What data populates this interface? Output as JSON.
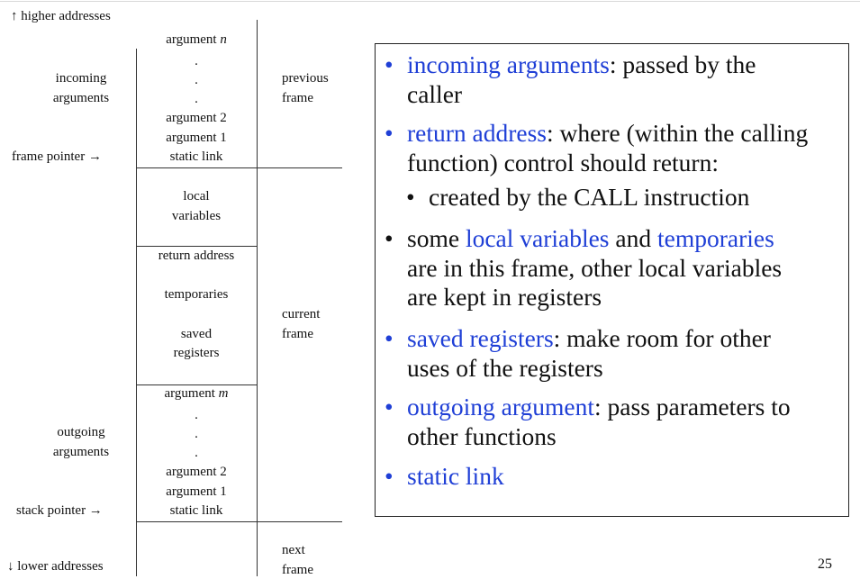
{
  "labels": {
    "higher_addresses": "↑ higher addresses",
    "incoming_args": [
      "incoming",
      "arguments"
    ],
    "frame_pointer": "frame pointer →",
    "outgoing_args": [
      "outgoing",
      "arguments"
    ],
    "stack_pointer": "stack pointer →",
    "lower_addresses": "↓ lower addresses"
  },
  "frames": {
    "previous": [
      "previous",
      "frame"
    ],
    "current": [
      "current",
      "frame"
    ],
    "next": [
      "next",
      "frame"
    ]
  },
  "stack": {
    "incoming": {
      "argument_n_base": "argument ",
      "argument_n_var": "n",
      "dot": ".",
      "argument_2": "argument 2",
      "argument_1": "argument 1",
      "static_link": "static link"
    },
    "local_variables": [
      "local",
      "variables"
    ],
    "return_address": "return address",
    "temporaries": "temporaries",
    "saved_registers": [
      "saved",
      "registers"
    ],
    "outgoing": {
      "argument_m_base": "argument ",
      "argument_m_var": "m",
      "dot": ".",
      "argument_2": "argument 2",
      "argument_1": "argument 1",
      "static_link": "static link"
    }
  },
  "bullets": [
    {
      "term": "incoming arguments",
      "rest": ": passed by the",
      "line2": "caller"
    },
    {
      "term": "return address",
      "rest": ": where (within the calling",
      "line2": "function) control should return:"
    },
    {
      "sub": "created by the CALL instruction"
    },
    {
      "pre": "some ",
      "term1": "local variables",
      "mid": " and ",
      "term2": "temporaries",
      "line2": "are in this frame, other local variables",
      "line3": "are kept in registers"
    },
    {
      "term": "saved registers",
      "rest": ": make room for other",
      "line2": "uses of the registers"
    },
    {
      "term": "outgoing argument",
      "rest": ": pass parameters to",
      "line2": "other functions"
    },
    {
      "term": "static link"
    }
  ],
  "bullet_glyph": "•",
  "page_number": "25",
  "colors": {
    "term": "#1f3fd6",
    "text": "#111111",
    "rule": "#333333"
  }
}
